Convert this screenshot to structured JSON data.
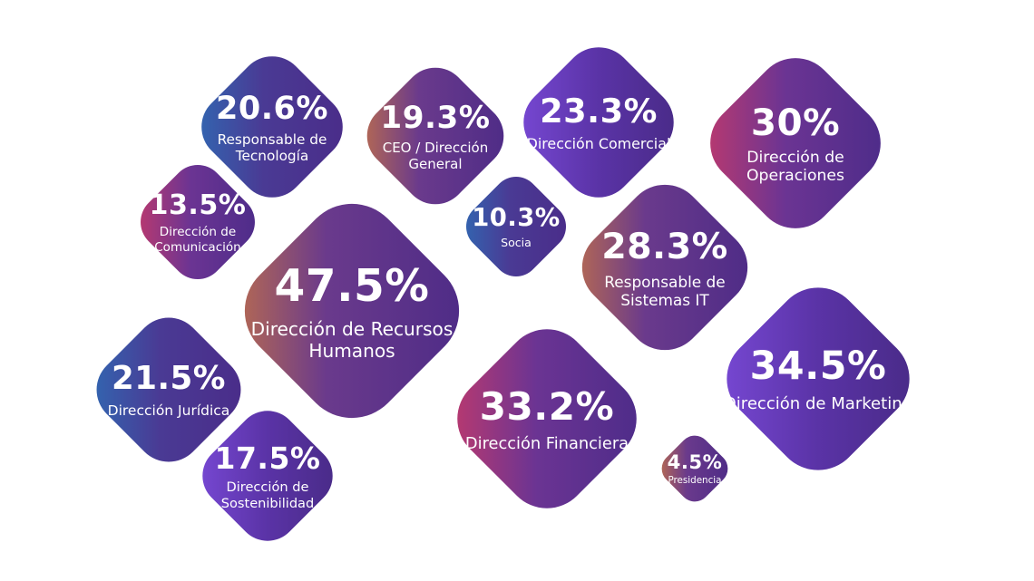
{
  "chart_data": {
    "type": "bubble",
    "categories": [
      "Responsable de Tecnología",
      "CEO / Dirección General",
      "Dirección Comercial",
      "Dirección de Operaciones",
      "Dirección de Comunicación",
      "Dirección de Recursos Humanos",
      "Socia",
      "Responsable de Sistemas IT",
      "Dirección Jurídica",
      "Dirección Financiera",
      "Dirección de Marketing",
      "Dirección de Sostenibilidad",
      "Presidencia"
    ],
    "values": [
      20.6,
      19.3,
      23.3,
      30,
      13.5,
      47.5,
      10.3,
      28.3,
      21.5,
      33.2,
      34.5,
      17.5,
      4.5
    ],
    "value_labels": [
      "20.6%",
      "19.3%",
      "23.3%",
      "30%",
      "13.5%",
      "47.5%",
      "10.3%",
      "28.3%",
      "21.5%",
      "33.2%",
      "34.5%",
      "17.5%",
      "4.5%"
    ]
  }
}
